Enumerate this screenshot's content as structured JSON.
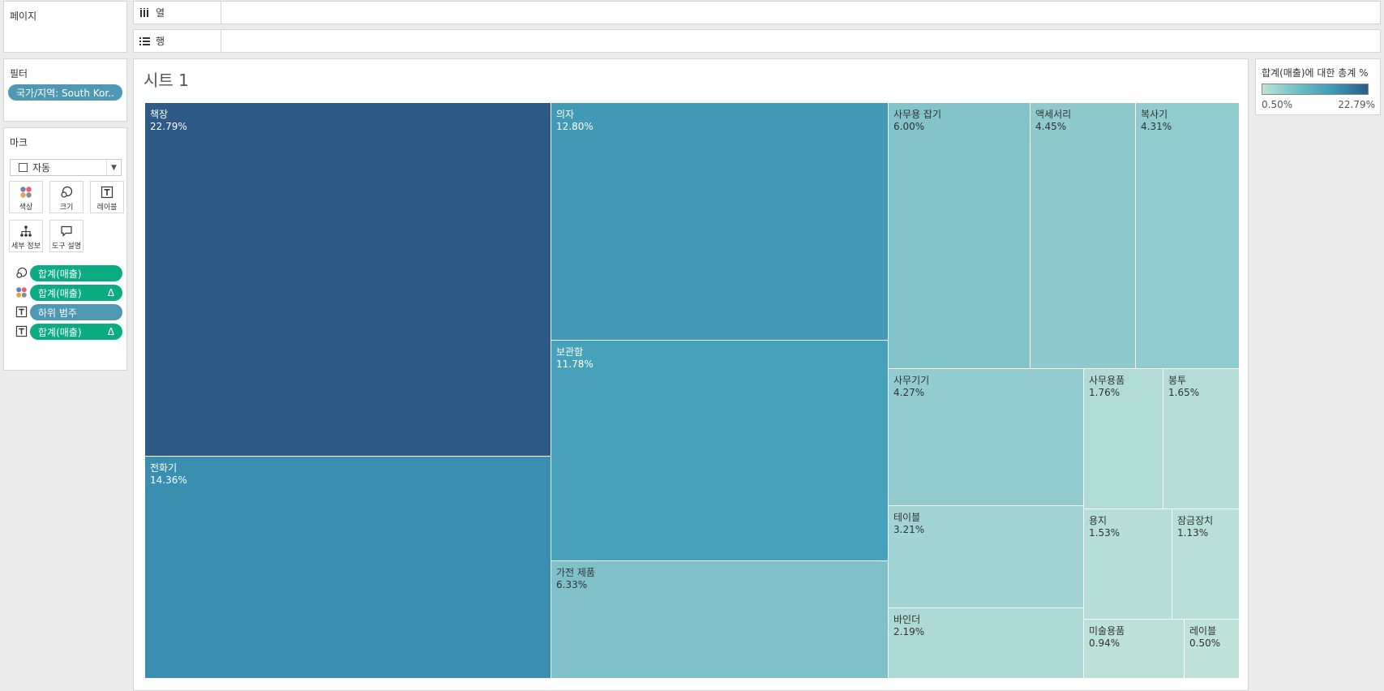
{
  "pages": {
    "title": "페이지"
  },
  "shelves": {
    "columns": {
      "label": "열"
    },
    "rows": {
      "label": "행"
    }
  },
  "filters": {
    "title": "필터",
    "items": [
      {
        "label": "국가/지역: South Kor.."
      }
    ]
  },
  "marks": {
    "title": "마크",
    "type": "자동",
    "buttons": {
      "color": "색상",
      "size": "크기",
      "label": "레이블",
      "detail": "세부 정보",
      "tooltip": "도구 설명"
    },
    "fields": [
      {
        "icon": "size-icon",
        "label": "합계(매출)",
        "kind": "green",
        "delta": ""
      },
      {
        "icon": "color-icon",
        "label": "합계(매출)",
        "kind": "green",
        "delta": "Δ"
      },
      {
        "icon": "text-icon",
        "label": "하위 범주",
        "kind": "blue",
        "delta": ""
      },
      {
        "icon": "text-icon",
        "label": "합계(매출)",
        "kind": "green",
        "delta": "Δ"
      }
    ]
  },
  "sheet": {
    "title": "시트 1"
  },
  "legend": {
    "title": "합계(매출)에 대한 총계 %",
    "min": "0.50%",
    "max": "22.79%",
    "colors": [
      "#bfe3d6",
      "#2b5b8a"
    ]
  },
  "chart_data": {
    "type": "treemap",
    "measure": "합계(매출)에 대한 총계 %",
    "items": [
      {
        "name": "책장",
        "value": 22.79,
        "label": "22.79%",
        "color": "#2e5a87"
      },
      {
        "name": "전화기",
        "value": 14.36,
        "label": "14.36%",
        "color": "#3a8fb1"
      },
      {
        "name": "의자",
        "value": 12.8,
        "label": "12.80%",
        "color": "#4199b5"
      },
      {
        "name": "보관함",
        "value": 11.78,
        "label": "11.78%",
        "color": "#48a1bb"
      },
      {
        "name": "가전 제품",
        "value": 6.33,
        "label": "6.33%",
        "color": "#80c1c9"
      },
      {
        "name": "사무용 잡기",
        "value": 6.0,
        "label": "6.00%",
        "color": "#83c3ca"
      },
      {
        "name": "액세서리",
        "value": 4.45,
        "label": "4.45%",
        "color": "#8fcacd"
      },
      {
        "name": "복사기",
        "value": 4.31,
        "label": "4.31%",
        "color": "#90cbce"
      },
      {
        "name": "사무기기",
        "value": 4.27,
        "label": "4.27%",
        "color": "#93cccf"
      },
      {
        "name": "테이블",
        "value": 3.21,
        "label": "3.21%",
        "color": "#a1d4d2"
      },
      {
        "name": "바인더",
        "value": 2.19,
        "label": "2.19%",
        "color": "#aedad5"
      },
      {
        "name": "사무용품",
        "value": 1.76,
        "label": "1.76%",
        "color": "#b1dcd5"
      },
      {
        "name": "봉투",
        "value": 1.65,
        "label": "1.65%",
        "color": "#b3ddd6"
      },
      {
        "name": "용지",
        "value": 1.53,
        "label": "1.53%",
        "color": "#b4ded7"
      },
      {
        "name": "잠금장치",
        "value": 1.13,
        "label": "1.13%",
        "color": "#b8e0d8"
      },
      {
        "name": "미술용품",
        "value": 0.94,
        "label": "0.94%",
        "color": "#bbe1d8"
      },
      {
        "name": "레이블",
        "value": 0.5,
        "label": "0.50%",
        "color": "#bfe3d9"
      }
    ]
  }
}
